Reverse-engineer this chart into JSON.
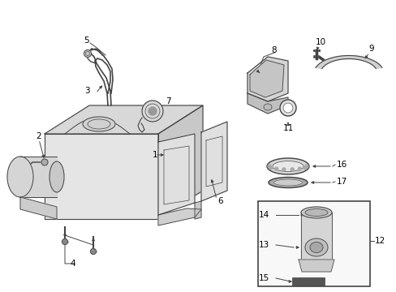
{
  "background_color": "#ffffff",
  "line_color": "#444444",
  "text_color": "#000000",
  "figsize": [
    4.89,
    3.6
  ],
  "dpi": 100
}
